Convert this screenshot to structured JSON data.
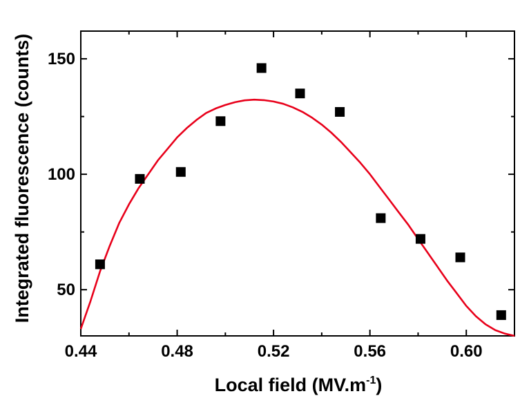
{
  "chart_data": {
    "type": "scatter",
    "title": "",
    "xlabel_main": "Local field (MV.m",
    "xlabel_sup": "-1",
    "xlabel_close": ")",
    "ylabel": "Integrated fluorescence (counts)",
    "xlim": [
      0.44,
      0.62
    ],
    "ylim": [
      30,
      162
    ],
    "grid": false,
    "legend": "none",
    "x_ticks": [
      0.44,
      0.48,
      0.52,
      0.56,
      0.6
    ],
    "x_tick_labels": [
      "0.44",
      "0.48",
      "0.52",
      "0.56",
      "0.60"
    ],
    "y_ticks": [
      50,
      100,
      150
    ],
    "y_tick_labels": [
      "50",
      "100",
      "150"
    ],
    "colors": {
      "points": "#000000",
      "fit_line": "#e8001a",
      "axes": "#000000"
    },
    "series": [
      {
        "type": "scatter",
        "marker": "square",
        "x": [
          0.448,
          0.4645,
          0.4815,
          0.498,
          0.515,
          0.531,
          0.5475,
          0.5645,
          0.581,
          0.5975,
          0.6145
        ],
        "y": [
          61,
          98,
          101,
          123,
          146,
          135,
          127,
          81,
          72,
          64,
          39
        ]
      },
      {
        "type": "line",
        "x": [
          0.44,
          0.444,
          0.448,
          0.452,
          0.456,
          0.46,
          0.464,
          0.468,
          0.472,
          0.476,
          0.48,
          0.484,
          0.488,
          0.492,
          0.496,
          0.5,
          0.504,
          0.508,
          0.512,
          0.516,
          0.52,
          0.524,
          0.528,
          0.532,
          0.536,
          0.54,
          0.544,
          0.548,
          0.552,
          0.556,
          0.56,
          0.564,
          0.568,
          0.572,
          0.576,
          0.58,
          0.584,
          0.588,
          0.592,
          0.596,
          0.6,
          0.604,
          0.608,
          0.612,
          0.616,
          0.62
        ],
        "y": [
          33,
          45,
          58,
          69,
          79,
          87,
          94,
          100,
          106,
          111,
          116,
          120,
          123.5,
          126.5,
          128.5,
          130,
          131.2,
          132,
          132.3,
          132.1,
          131.5,
          130.5,
          129,
          127,
          124.5,
          121.5,
          118,
          114,
          109.5,
          105,
          100,
          94.5,
          89,
          83.5,
          78,
          72,
          66,
          60,
          54,
          48.5,
          43,
          38.5,
          35,
          32.5,
          31,
          30
        ]
      }
    ]
  }
}
